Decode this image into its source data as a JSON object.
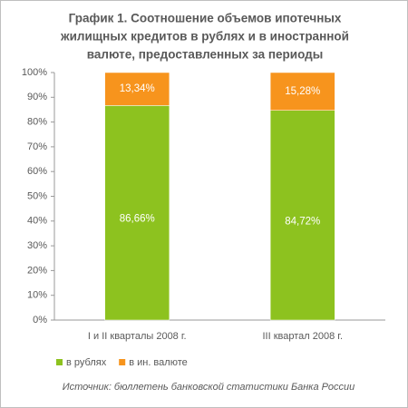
{
  "chart_data": {
    "type": "stacked_bar",
    "title": [
      "График 1. Соотношение объемов ипотечных",
      "жилищных кредитов в рублях и в иностранной",
      "валюте, предоставленных за периоды"
    ],
    "categories": [
      "I и II кварталы 2008 г.",
      "III квартал 2008 г."
    ],
    "series": [
      {
        "name": "в рублях",
        "color": "#8dc21f",
        "values": [
          86.66,
          84.72
        ],
        "value_labels": [
          "86,66%",
          "84,72%"
        ]
      },
      {
        "name": "в ин. валюте",
        "color": "#f7941d",
        "values": [
          13.34,
          15.28
        ],
        "value_labels": [
          "13,34%",
          "15,28%"
        ]
      }
    ],
    "ylim": [
      0,
      100
    ],
    "yticks": [
      {
        "value": 0,
        "label": "0%"
      },
      {
        "value": 10,
        "label": "10%"
      },
      {
        "value": 20,
        "label": "20%"
      },
      {
        "value": 30,
        "label": "30%"
      },
      {
        "value": 40,
        "label": "40%"
      },
      {
        "value": 50,
        "label": "50%"
      },
      {
        "value": 60,
        "label": "60%"
      },
      {
        "value": 70,
        "label": "70%"
      },
      {
        "value": 80,
        "label": "80%"
      },
      {
        "value": 90,
        "label": "90%"
      },
      {
        "value": 100,
        "label": "100%"
      }
    ],
    "grid": false,
    "legend": "bottom-left",
    "source": "Источник: бюллетень банковской статистики Банка России"
  }
}
